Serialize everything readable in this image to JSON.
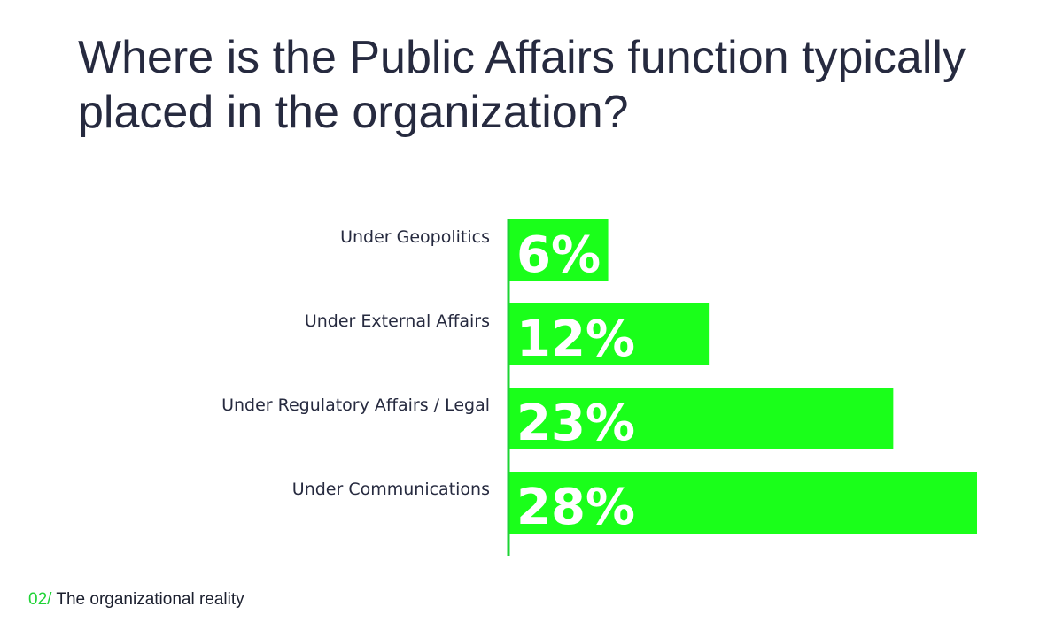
{
  "title": "Where is the Public Affairs function typically placed in the organization?",
  "footer": {
    "number": "02/",
    "text": "The organizational reality"
  },
  "colors": {
    "bar": "#1aff1a",
    "axis": "#1dd334",
    "title": "#262a3f",
    "value_text": "#ffffff"
  },
  "chart_data": {
    "type": "bar",
    "orientation": "horizontal",
    "categories": [
      "Under Geopolitics",
      "Under External Affairs",
      "Under Regulatory Affairs / Legal",
      "Under Communications"
    ],
    "values": [
      6,
      12,
      23,
      28
    ],
    "value_labels": [
      "6%",
      "12%",
      "23%",
      "28%"
    ],
    "xlim": [
      0,
      28
    ],
    "grid": false,
    "legend": "none"
  }
}
